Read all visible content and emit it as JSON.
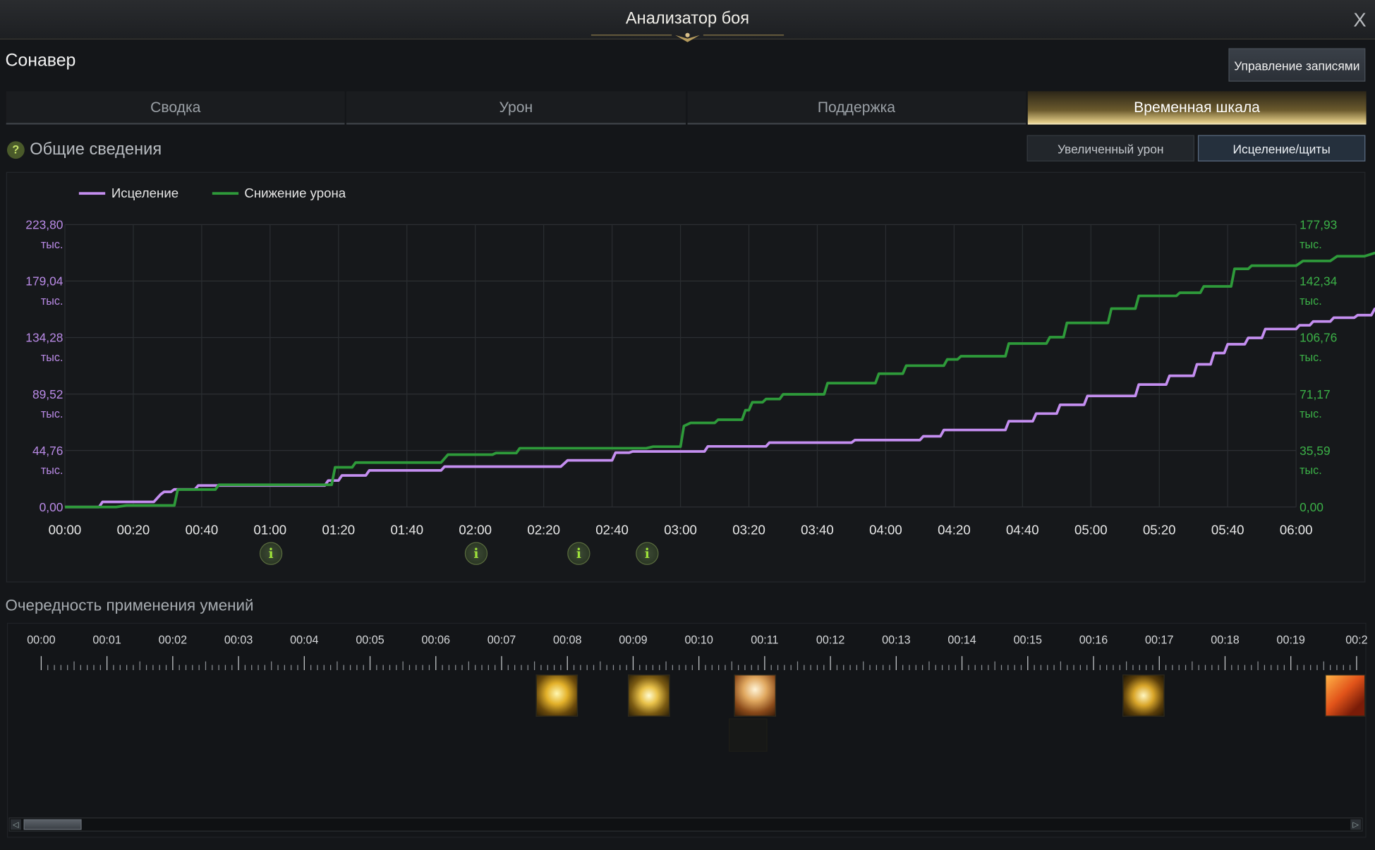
{
  "window": {
    "title": "Анализатор боя",
    "close_label": "X"
  },
  "header": {
    "character_name": "Сонавер",
    "manage_button": "Управление записями"
  },
  "tabs": [
    {
      "label": "Сводка",
      "active": false
    },
    {
      "label": "Урон",
      "active": false
    },
    {
      "label": "Поддержка",
      "active": false
    },
    {
      "label": "Временная шкала",
      "active": true
    }
  ],
  "overview": {
    "title": "Общие сведения",
    "help_icon": "?",
    "sub_buttons": [
      {
        "label": "Увеличенный урон",
        "active": false
      },
      {
        "label": "Исцеление/щиты",
        "active": true
      }
    ]
  },
  "chart_data": {
    "type": "line",
    "series": [
      {
        "name": "Исцеление",
        "color": "#c48ef0",
        "axis": "left",
        "points": [
          [
            0,
            0
          ],
          [
            10,
            0
          ],
          [
            11,
            4
          ],
          [
            20,
            4
          ],
          [
            26,
            4
          ],
          [
            28,
            10
          ],
          [
            29,
            12
          ],
          [
            31,
            12
          ],
          [
            32,
            14
          ],
          [
            38,
            14
          ],
          [
            39,
            17
          ],
          [
            50,
            17
          ],
          [
            62,
            17
          ],
          [
            76,
            17
          ],
          [
            77,
            21
          ],
          [
            80,
            21
          ],
          [
            81,
            25
          ],
          [
            88,
            25
          ],
          [
            89,
            29
          ],
          [
            100,
            29
          ],
          [
            110,
            29
          ],
          [
            111,
            32
          ],
          [
            125,
            32
          ],
          [
            140,
            32
          ],
          [
            145,
            32
          ],
          [
            147,
            37
          ],
          [
            160,
            37
          ],
          [
            160,
            37
          ],
          [
            161,
            43
          ],
          [
            165,
            43
          ],
          [
            165,
            43
          ],
          [
            166,
            44
          ],
          [
            173,
            44
          ],
          [
            182,
            44
          ],
          [
            187,
            44
          ],
          [
            188,
            48
          ],
          [
            200,
            48
          ],
          [
            205,
            48
          ],
          [
            206,
            51
          ],
          [
            225,
            51
          ],
          [
            230,
            51
          ],
          [
            231,
            53
          ],
          [
            240,
            53
          ],
          [
            250,
            53
          ],
          [
            251,
            56
          ],
          [
            256,
            56
          ],
          [
            257,
            61
          ],
          [
            275,
            61
          ],
          [
            275,
            61
          ],
          [
            276,
            68
          ],
          [
            283,
            68
          ],
          [
            284,
            74
          ],
          [
            290,
            74
          ],
          [
            291,
            81
          ],
          [
            298,
            81
          ],
          [
            299,
            88
          ],
          [
            313,
            88
          ],
          [
            314,
            97
          ],
          [
            322,
            97
          ],
          [
            323,
            104
          ],
          [
            330,
            104
          ],
          [
            331,
            113
          ],
          [
            335,
            113
          ],
          [
            336,
            122
          ],
          [
            339,
            122
          ],
          [
            339,
            122
          ],
          [
            340,
            129
          ],
          [
            345,
            129
          ],
          [
            345,
            129
          ],
          [
            346,
            134
          ],
          [
            350,
            134
          ],
          [
            351,
            141
          ],
          [
            360,
            141
          ],
          [
            361,
            144
          ],
          [
            364,
            144
          ],
          [
            365,
            147
          ],
          [
            370,
            147
          ],
          [
            371,
            150
          ],
          [
            377,
            150
          ],
          [
            378,
            152
          ],
          [
            382,
            152
          ],
          [
            383,
            157
          ],
          [
            384,
            157
          ]
        ]
      },
      {
        "name": "Снижение урона",
        "color": "#2e9a3a",
        "axis": "right",
        "points": [
          [
            0,
            0
          ],
          [
            15,
            0
          ],
          [
            18,
            1
          ],
          [
            25,
            1
          ],
          [
            32,
            1
          ],
          [
            33,
            11
          ],
          [
            44,
            11
          ],
          [
            45,
            14
          ],
          [
            56,
            14
          ],
          [
            60,
            14
          ],
          [
            78,
            14
          ],
          [
            79,
            25
          ],
          [
            84,
            25
          ],
          [
            85,
            28
          ],
          [
            100,
            28
          ],
          [
            110,
            28
          ],
          [
            112,
            33
          ],
          [
            125,
            33
          ],
          [
            126,
            34
          ],
          [
            132,
            34
          ],
          [
            133,
            37
          ],
          [
            137,
            37
          ],
          [
            145,
            37
          ],
          [
            160,
            37
          ],
          [
            170,
            37
          ],
          [
            172,
            38
          ],
          [
            178,
            38
          ],
          [
            180,
            38
          ],
          [
            181,
            51
          ],
          [
            183,
            53
          ],
          [
            190,
            53
          ],
          [
            191,
            55
          ],
          [
            198,
            55
          ],
          [
            199,
            61
          ],
          [
            200,
            61
          ],
          [
            201,
            66
          ],
          [
            204,
            66
          ],
          [
            205,
            68
          ],
          [
            209,
            68
          ],
          [
            210,
            71
          ],
          [
            222,
            71
          ],
          [
            223,
            78
          ],
          [
            237,
            78
          ],
          [
            238,
            84
          ],
          [
            245,
            84
          ],
          [
            246,
            89
          ],
          [
            257,
            89
          ],
          [
            258,
            93
          ],
          [
            261,
            93
          ],
          [
            262,
            95
          ],
          [
            275,
            95
          ],
          [
            276,
            103
          ],
          [
            287,
            103
          ],
          [
            288,
            107
          ],
          [
            292,
            107
          ],
          [
            293,
            116
          ],
          [
            300,
            116
          ],
          [
            305,
            116
          ],
          [
            306,
            125
          ],
          [
            313,
            125
          ],
          [
            314,
            133
          ],
          [
            325,
            133
          ],
          [
            326,
            135
          ],
          [
            332,
            135
          ],
          [
            333,
            139
          ],
          [
            341,
            139
          ],
          [
            342,
            150
          ],
          [
            346,
            150
          ],
          [
            347,
            152
          ],
          [
            360,
            152
          ],
          [
            362,
            155
          ],
          [
            370,
            155
          ],
          [
            372,
            158
          ],
          [
            380,
            158
          ],
          [
            383,
            160
          ],
          [
            384,
            160
          ]
        ]
      }
    ],
    "x_ticks": [
      "00:00",
      "00:20",
      "00:40",
      "01:00",
      "01:20",
      "01:40",
      "02:00",
      "02:20",
      "02:40",
      "03:00",
      "03:20",
      "03:40",
      "04:00",
      "04:20",
      "04:40",
      "05:00",
      "05:20",
      "05:40",
      "06:00"
    ],
    "x_range_seconds": [
      0,
      360
    ],
    "left_axis": {
      "ticks": [
        "0,00",
        "44,76",
        "89,52",
        "134,28",
        "179,04",
        "223,80"
      ],
      "unit": "тыс.",
      "range": [
        0,
        223.8
      ]
    },
    "right_axis": {
      "ticks": [
        "0,00",
        "35,59",
        "71,17",
        "106,76",
        "142,34",
        "177,93"
      ],
      "unit": "тыс.",
      "range": [
        0,
        177.93
      ]
    },
    "info_markers_seconds": [
      60,
      120,
      150,
      170
    ],
    "info_marker_label": "i",
    "grid": true,
    "legend": "top-left"
  },
  "sequence": {
    "title": "Очередность применения умений",
    "ruler_labels": [
      "00:00",
      "00:01",
      "00:02",
      "00:03",
      "00:04",
      "00:05",
      "00:06",
      "00:07",
      "00:08",
      "00:09",
      "00:10",
      "00:11",
      "00:12",
      "00:13",
      "00:14",
      "00:15",
      "00:16",
      "00:17",
      "00:18",
      "00:19",
      "00:2"
    ],
    "skills": [
      {
        "icon": "golden-orb-skill-icon",
        "time": "00:07.8"
      },
      {
        "icon": "radiant-angel-skill-icon",
        "time": "00:09.2"
      },
      {
        "icon": "winged-light-skill-icon",
        "time": "00:10.8"
      },
      {
        "icon": "lightning-sigil-skill-icon",
        "time": "00:16.8"
      },
      {
        "icon": "fire-streak-skill-icon",
        "time": "00:19.8"
      }
    ],
    "scroll": {
      "left_arrow": "◁",
      "right_arrow": "▷"
    }
  }
}
